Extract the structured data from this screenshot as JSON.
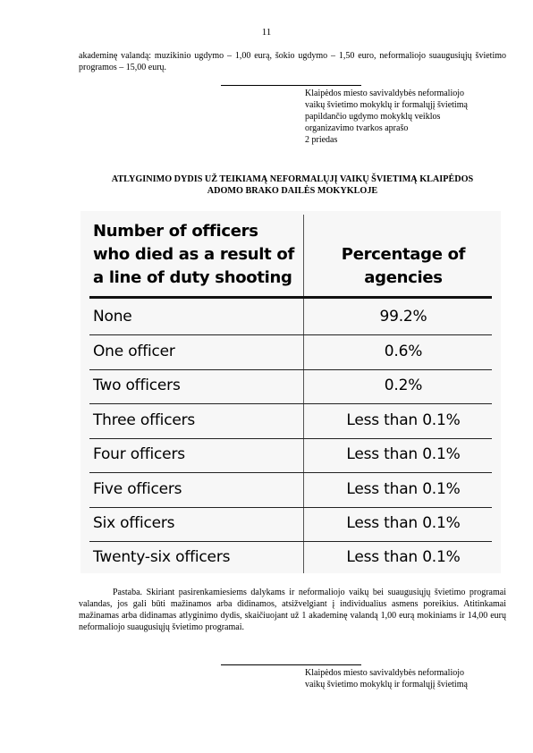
{
  "page_number": "11",
  "intro_text": "akademinę valandą: muzikinio ugdymo – 1,00 eurą, šokio ugdymo – 1,50 euro, neformaliojo suaugusiųjų švietimo programos – 15,00 eurų.",
  "appendix_top": {
    "lines": [
      "Klaipėdos miesto savivaldybės neformaliojo",
      "vaikų švietimo mokyklų ir formalųjį švietimą",
      "papildančio ugdymo mokyklų veiklos",
      "organizavimo tvarkos aprašo",
      "2 priedas"
    ]
  },
  "title_lines": [
    "ATLYGINIMO DYDIS UŽ TEIKIAMĄ NEFORMALŲJĮ VAIKŲ ŠVIETIMĄ KLAIPĖDOS",
    "ADOMO BRAKO DAILĖS MOKYKLOJE"
  ],
  "table": {
    "header_left": [
      "Number of officers",
      "who died as a result of",
      "a line of duty shooting"
    ],
    "header_right": [
      "Percentage of",
      "agencies"
    ],
    "rows": [
      {
        "label": "None",
        "value": "99.2%"
      },
      {
        "label": "One officer",
        "value": "0.6%"
      },
      {
        "label": "Two officers",
        "value": "0.2%"
      },
      {
        "label": "Three officers",
        "value": "Less than 0.1%"
      },
      {
        "label": "Four officers",
        "value": "Less than 0.1%"
      },
      {
        "label": "Five officers",
        "value": "Less than 0.1%"
      },
      {
        "label": "Six officers",
        "value": "Less than 0.1%"
      },
      {
        "label": "Twenty-six officers",
        "value": "Less than 0.1%"
      }
    ]
  },
  "note_text": "Pastaba. Skiriant pasirenkamiesiems dalykams ir neformaliojo vaikų bei suaugusiųjų švietimo programai valandas, jos gali būti mažinamos arba didinamos, atsižvelgiant į individualius asmens poreikius. Atitinkamai mažinamas arba didinamas atlyginimo dydis, skaičiuojant už 1 akademinę valandą 1,00 eurą mokiniams ir 14,00 eurų neformaliojo suaugusiųjų švietimo programai.",
  "appendix_bottom": {
    "lines": [
      "Klaipėdos miesto savivaldybės neformaliojo",
      "vaikų švietimo mokyklų ir formalųjį švietimą"
    ]
  }
}
